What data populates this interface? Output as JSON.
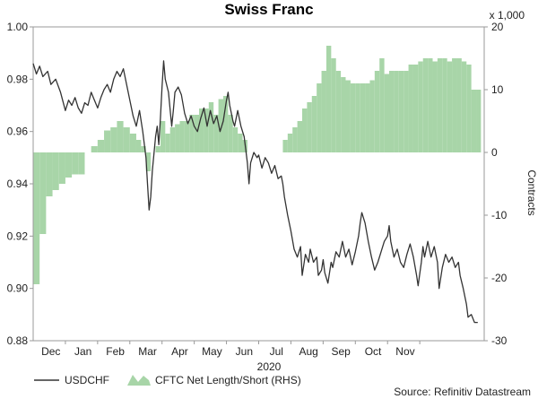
{
  "chart_data": {
    "type": "line",
    "title": "Swiss Franc",
    "xlabel": "2020",
    "x_categories": [
      "Dec",
      "Jan",
      "Feb",
      "Mar",
      "Apr",
      "May",
      "Jun",
      "Jul",
      "Aug",
      "Sep",
      "Oct",
      "Nov"
    ],
    "y_left": {
      "label": "",
      "ylim": [
        0.88,
        1.0
      ],
      "ticks": [
        "1.00",
        "0.98",
        "0.96",
        "0.94",
        "0.92",
        "0.90",
        "0.88"
      ]
    },
    "y_right": {
      "label": "Contracts",
      "multiplier_label": "x 1,000",
      "ylim": [
        -30,
        20
      ],
      "ticks": [
        "20",
        "10",
        "0",
        "-10",
        "-20",
        "-30"
      ]
    },
    "series": [
      {
        "name": "USDCHF",
        "type": "line",
        "color": "#333333",
        "points": [
          [
            0.0,
            0.986
          ],
          [
            0.1,
            0.982
          ],
          [
            0.2,
            0.985
          ],
          [
            0.3,
            0.981
          ],
          [
            0.45,
            0.983
          ],
          [
            0.55,
            0.978
          ],
          [
            0.7,
            0.98
          ],
          [
            0.85,
            0.975
          ],
          [
            1.0,
            0.968
          ],
          [
            1.1,
            0.972
          ],
          [
            1.2,
            0.97
          ],
          [
            1.3,
            0.973
          ],
          [
            1.4,
            0.969
          ],
          [
            1.5,
            0.967
          ],
          [
            1.6,
            0.971
          ],
          [
            1.7,
            0.97
          ],
          [
            1.8,
            0.975
          ],
          [
            1.9,
            0.972
          ],
          [
            2.0,
            0.969
          ],
          [
            2.1,
            0.973
          ],
          [
            2.2,
            0.976
          ],
          [
            2.3,
            0.978
          ],
          [
            2.4,
            0.975
          ],
          [
            2.5,
            0.98
          ],
          [
            2.6,
            0.983
          ],
          [
            2.7,
            0.981
          ],
          [
            2.8,
            0.984
          ],
          [
            2.9,
            0.978
          ],
          [
            3.0,
            0.972
          ],
          [
            3.1,
            0.966
          ],
          [
            3.2,
            0.962
          ],
          [
            3.3,
            0.968
          ],
          [
            3.4,
            0.96
          ],
          [
            3.5,
            0.95
          ],
          [
            3.55,
            0.94
          ],
          [
            3.6,
            0.93
          ],
          [
            3.65,
            0.935
          ],
          [
            3.7,
            0.945
          ],
          [
            3.8,
            0.958
          ],
          [
            3.85,
            0.962
          ],
          [
            3.9,
            0.955
          ],
          [
            3.95,
            0.965
          ],
          [
            4.0,
            0.977
          ],
          [
            4.05,
            0.987
          ],
          [
            4.1,
            0.98
          ],
          [
            4.2,
            0.975
          ],
          [
            4.3,
            0.962
          ],
          [
            4.35,
            0.968
          ],
          [
            4.4,
            0.975
          ],
          [
            4.5,
            0.977
          ],
          [
            4.6,
            0.974
          ],
          [
            4.7,
            0.967
          ],
          [
            4.8,
            0.963
          ],
          [
            4.9,
            0.966
          ],
          [
            5.0,
            0.962
          ],
          [
            5.1,
            0.96
          ],
          [
            5.2,
            0.965
          ],
          [
            5.3,
            0.969
          ],
          [
            5.4,
            0.962
          ],
          [
            5.5,
            0.968
          ],
          [
            5.6,
            0.963
          ],
          [
            5.7,
            0.966
          ],
          [
            5.8,
            0.96
          ],
          [
            5.9,
            0.964
          ],
          [
            6.0,
            0.972
          ],
          [
            6.05,
            0.975
          ],
          [
            6.1,
            0.97
          ],
          [
            6.2,
            0.964
          ],
          [
            6.25,
            0.962
          ],
          [
            6.35,
            0.968
          ],
          [
            6.45,
            0.962
          ],
          [
            6.55,
            0.958
          ],
          [
            6.65,
            0.948
          ],
          [
            6.7,
            0.94
          ],
          [
            6.75,
            0.948
          ],
          [
            6.85,
            0.952
          ],
          [
            6.95,
            0.95
          ],
          [
            7.0,
            0.951
          ],
          [
            7.1,
            0.946
          ],
          [
            7.2,
            0.95
          ],
          [
            7.3,
            0.948
          ],
          [
            7.4,
            0.944
          ],
          [
            7.5,
            0.947
          ],
          [
            7.6,
            0.942
          ],
          [
            7.7,
            0.943
          ],
          [
            7.75,
            0.94
          ],
          [
            7.8,
            0.935
          ],
          [
            7.9,
            0.928
          ],
          [
            8.0,
            0.922
          ],
          [
            8.1,
            0.915
          ],
          [
            8.2,
            0.912
          ],
          [
            8.3,
            0.916
          ],
          [
            8.35,
            0.905
          ],
          [
            8.45,
            0.913
          ],
          [
            8.55,
            0.91
          ],
          [
            8.6,
            0.915
          ],
          [
            8.7,
            0.91
          ],
          [
            8.8,
            0.912
          ],
          [
            8.85,
            0.905
          ],
          [
            8.95,
            0.907
          ],
          [
            9.0,
            0.911
          ],
          [
            9.05,
            0.906
          ],
          [
            9.15,
            0.902
          ],
          [
            9.25,
            0.91
          ],
          [
            9.3,
            0.908
          ],
          [
            9.4,
            0.914
          ],
          [
            9.5,
            0.912
          ],
          [
            9.6,
            0.918
          ],
          [
            9.7,
            0.912
          ],
          [
            9.8,
            0.915
          ],
          [
            9.9,
            0.909
          ],
          [
            10.0,
            0.914
          ],
          [
            10.1,
            0.92
          ],
          [
            10.15,
            0.925
          ],
          [
            10.2,
            0.929
          ],
          [
            10.3,
            0.925
          ],
          [
            10.4,
            0.918
          ],
          [
            10.5,
            0.912
          ],
          [
            10.6,
            0.907
          ],
          [
            10.7,
            0.91
          ],
          [
            10.8,
            0.914
          ],
          [
            10.9,
            0.918
          ],
          [
            11.0,
            0.92
          ],
          [
            11.05,
            0.924
          ],
          [
            11.1,
            0.918
          ],
          [
            11.2,
            0.912
          ],
          [
            11.3,
            0.915
          ],
          [
            11.4,
            0.91
          ],
          [
            11.5,
            0.908
          ],
          [
            11.6,
            0.913
          ],
          [
            11.7,
            0.917
          ],
          [
            11.8,
            0.912
          ],
          [
            11.9,
            0.905
          ],
          [
            11.95,
            0.901
          ],
          [
            12.05,
            0.91
          ],
          [
            12.1,
            0.916
          ],
          [
            12.15,
            0.912
          ],
          [
            12.25,
            0.918
          ],
          [
            12.35,
            0.912
          ],
          [
            12.45,
            0.916
          ],
          [
            12.55,
            0.91
          ],
          [
            12.6,
            0.9
          ],
          [
            12.7,
            0.908
          ],
          [
            12.8,
            0.913
          ],
          [
            12.9,
            0.91
          ],
          [
            13.0,
            0.912
          ],
          [
            13.1,
            0.908
          ],
          [
            13.2,
            0.91
          ],
          [
            13.25,
            0.905
          ],
          [
            13.35,
            0.9
          ],
          [
            13.45,
            0.894
          ],
          [
            13.5,
            0.889
          ],
          [
            13.6,
            0.89
          ],
          [
            13.7,
            0.887
          ],
          [
            13.8,
            0.887
          ]
        ]
      },
      {
        "name": "CFTC Net Length/Short (RHS)",
        "type": "step-area",
        "color": "#a8d5a8",
        "points": [
          [
            0.0,
            -21
          ],
          [
            0.2,
            -13
          ],
          [
            0.4,
            -7
          ],
          [
            0.6,
            -6
          ],
          [
            0.8,
            -5
          ],
          [
            1.0,
            -4
          ],
          [
            1.2,
            -3.5
          ],
          [
            1.4,
            -3.5
          ],
          [
            1.6,
            0
          ],
          [
            1.8,
            1
          ],
          [
            2.0,
            2
          ],
          [
            2.2,
            3.5
          ],
          [
            2.4,
            4
          ],
          [
            2.6,
            5
          ],
          [
            2.8,
            4
          ],
          [
            3.0,
            3
          ],
          [
            3.2,
            2
          ],
          [
            3.35,
            1
          ],
          [
            3.5,
            -3
          ],
          [
            3.65,
            0
          ],
          [
            3.8,
            1
          ],
          [
            3.95,
            5
          ],
          [
            4.1,
            3
          ],
          [
            4.25,
            4
          ],
          [
            4.4,
            4.5
          ],
          [
            4.55,
            5
          ],
          [
            4.7,
            5
          ],
          [
            4.85,
            6
          ],
          [
            5.0,
            6
          ],
          [
            5.15,
            7
          ],
          [
            5.3,
            7
          ],
          [
            5.45,
            8
          ],
          [
            5.6,
            6
          ],
          [
            5.75,
            8.5
          ],
          [
            5.9,
            9
          ],
          [
            6.05,
            6
          ],
          [
            6.2,
            4
          ],
          [
            6.35,
            3
          ],
          [
            6.5,
            2
          ],
          [
            6.65,
            0
          ],
          [
            6.8,
            0
          ],
          [
            7.0,
            0
          ],
          [
            7.2,
            0
          ],
          [
            7.4,
            0
          ],
          [
            7.6,
            0
          ],
          [
            7.75,
            2
          ],
          [
            7.9,
            3
          ],
          [
            8.05,
            4
          ],
          [
            8.2,
            5
          ],
          [
            8.35,
            7
          ],
          [
            8.5,
            8
          ],
          [
            8.65,
            9
          ],
          [
            8.8,
            11
          ],
          [
            8.95,
            13
          ],
          [
            9.1,
            17
          ],
          [
            9.25,
            15
          ],
          [
            9.4,
            13
          ],
          [
            9.55,
            12
          ],
          [
            9.7,
            11.5
          ],
          [
            9.85,
            11
          ],
          [
            10.0,
            11
          ],
          [
            10.15,
            11
          ],
          [
            10.3,
            11
          ],
          [
            10.45,
            11.5
          ],
          [
            10.6,
            13
          ],
          [
            10.75,
            15
          ],
          [
            10.9,
            12.5
          ],
          [
            11.05,
            13
          ],
          [
            11.2,
            13
          ],
          [
            11.35,
            13
          ],
          [
            11.5,
            13
          ],
          [
            11.65,
            14
          ],
          [
            11.8,
            14
          ],
          [
            11.95,
            14.5
          ],
          [
            12.1,
            15
          ],
          [
            12.25,
            15
          ],
          [
            12.4,
            14.5
          ],
          [
            12.55,
            15
          ],
          [
            12.7,
            15
          ],
          [
            12.85,
            14.5
          ],
          [
            13.0,
            15
          ],
          [
            13.15,
            15
          ],
          [
            13.3,
            14.5
          ],
          [
            13.45,
            14
          ],
          [
            13.6,
            10
          ],
          [
            13.75,
            10
          ]
        ]
      }
    ],
    "legend": [
      "USDCHF",
      "CFTC Net Length/Short (RHS)"
    ],
    "legend_placement": "bottom-left",
    "source": "Source: Refinitiv Datastream",
    "grid": false
  }
}
